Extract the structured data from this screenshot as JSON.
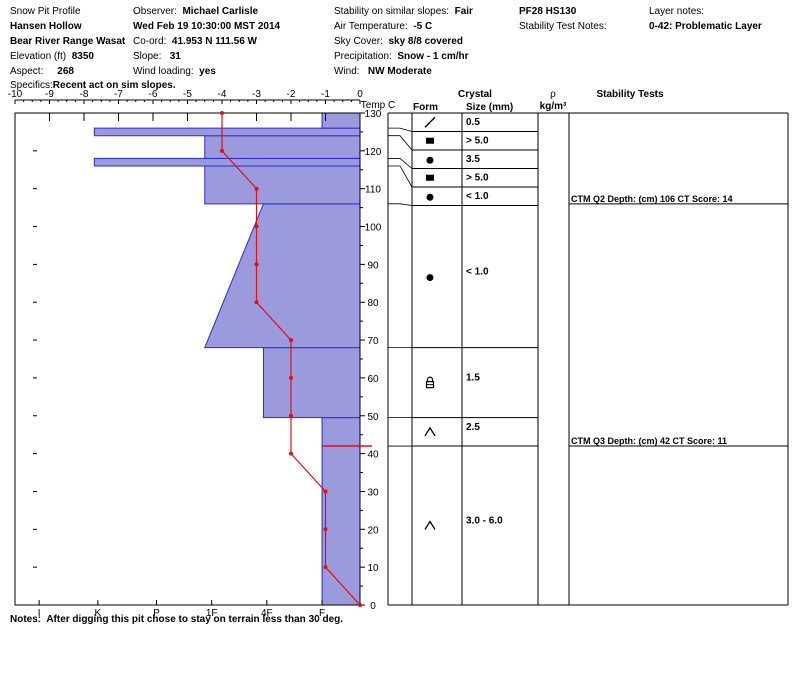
{
  "header": {
    "col1": {
      "title": "Snow Pit Profile",
      "location": "Hansen Hollow",
      "range": "Bear River Range Wasat",
      "elevation_label": "Elevation (ft)",
      "elevation": "8350",
      "aspect_label": "Aspect:",
      "aspect": "268",
      "specifics_label": "Specifics:",
      "specifics": "Recent act on sim slopes."
    },
    "col2": {
      "observer_label": "Observer:",
      "observer": "Michael Carlisle",
      "datetime": "Wed Feb 19 10:30:00 MST 2014",
      "coord_label": "Co-ord:",
      "coord": "41.953 N 111.56 W",
      "slope_label": "Slope:",
      "slope": "31",
      "wind_loading_label": "Wind loading:",
      "wind_loading": "yes"
    },
    "col3": {
      "stability_label": "Stability on similar slopes:",
      "stability": "Fair",
      "air_temp_label": "Air Temperature:",
      "air_temp": "-5 C",
      "sky_label": "Sky Cover:",
      "sky": "sky 8/8 covered",
      "precip_label": "Precipitation:",
      "precip": "Snow - 1 cm/hr",
      "wind_label": "Wind:",
      "wind": "NW Moderate"
    },
    "col4": {
      "pf_hs": "PF28 HS130",
      "stability_notes_label": "Stability Test Notes:"
    },
    "col5": {
      "layer_notes_label": "Layer notes:",
      "layer_notes": "0-42: Problematic Layer"
    }
  },
  "notes_label": "Notes:",
  "notes": "After digging this pit chose to stay on terrain less than 30 deg.",
  "column_headers": {
    "temp": "Temp C",
    "crystal": "Crystal",
    "form": "Form",
    "size": "Size (mm)",
    "rho": "ρ",
    "rho_unit": "kg/m³",
    "stability_tests": "Stability Tests"
  },
  "colors": {
    "hardness_fill": "#9a9add",
    "hardness_stroke": "#2a2ad8",
    "temp_line": "#e01010",
    "test_marker": "#e01010"
  },
  "chart_data": {
    "type": "snow-profile",
    "temperature_axis": {
      "ticks": [
        -10,
        -9,
        -8,
        -7,
        -6,
        -5,
        -4,
        -3,
        -2,
        -1,
        0
      ],
      "range": [
        -10,
        0
      ]
    },
    "depth_axis": {
      "ticks": [
        0,
        10,
        20,
        30,
        40,
        50,
        60,
        70,
        80,
        90,
        100,
        110,
        120,
        130
      ],
      "range": [
        0,
        130
      ]
    },
    "hardness_axis": {
      "labels": [
        "I",
        "K",
        "P",
        "1F",
        "4F",
        "F"
      ],
      "label_temps": [
        -9.3,
        -7.6,
        -5.9,
        -4.3,
        -2.7,
        -1.1
      ]
    },
    "hardness_profile": [
      {
        "bottom": 0,
        "top": 42,
        "left_temp": -1.1
      },
      {
        "bottom": 42,
        "top": 49.5,
        "left_temp": -1.1
      },
      {
        "bottom": 49.5,
        "top": 68,
        "left_temp": -2.8
      },
      {
        "bottom": 68,
        "top": 106,
        "left_temp_bottom": -4.5,
        "left_temp_top": -2.8
      },
      {
        "bottom": 106,
        "top": 116,
        "left_temp": -4.5
      },
      {
        "bottom": 116,
        "top": 118,
        "left_temp": -7.7
      },
      {
        "bottom": 118,
        "top": 124,
        "left_temp": -4.5
      },
      {
        "bottom": 124,
        "top": 126,
        "left_temp": -7.7
      },
      {
        "bottom": 126,
        "top": 130,
        "left_temp": -1.1
      }
    ],
    "temperature_profile": [
      {
        "depth": 0,
        "temp": 0
      },
      {
        "depth": 10,
        "temp": -1
      },
      {
        "depth": 20,
        "temp": -1
      },
      {
        "depth": 30,
        "temp": -1
      },
      {
        "depth": 40,
        "temp": -2
      },
      {
        "depth": 50,
        "temp": -2
      },
      {
        "depth": 60,
        "temp": -2
      },
      {
        "depth": 70,
        "temp": -2
      },
      {
        "depth": 80,
        "temp": -3
      },
      {
        "depth": 90,
        "temp": -3
      },
      {
        "depth": 100,
        "temp": -3
      },
      {
        "depth": 110,
        "temp": -3
      },
      {
        "depth": 120,
        "temp": -4
      },
      {
        "depth": 130,
        "temp": -4
      }
    ],
    "layer_boundaries": [
      0,
      42,
      49.5,
      68,
      106,
      116,
      118,
      124,
      126,
      130
    ],
    "stability_marker_depth": 42,
    "layers": [
      {
        "bottom": 126,
        "top": 130,
        "form": "slash",
        "size": "0.5"
      },
      {
        "bottom": 124,
        "top": 126,
        "form": "square",
        "size": "> 5.0"
      },
      {
        "bottom": 118,
        "top": 124,
        "form": "dot",
        "size": "3.5"
      },
      {
        "bottom": 116,
        "top": 118,
        "form": "square",
        "size": "> 5.0"
      },
      {
        "bottom": 106,
        "top": 116,
        "form": "dot",
        "size": "< 1.0"
      },
      {
        "bottom": 68,
        "top": 106,
        "form": "dot",
        "size": "< 1.0"
      },
      {
        "bottom": 49.5,
        "top": 68,
        "form": "lock",
        "size": "1.5"
      },
      {
        "bottom": 42,
        "top": 49.5,
        "form": "caret",
        "size": "2.5"
      },
      {
        "bottom": 0,
        "top": 42,
        "form": "caret",
        "size": "3.0 - 6.0"
      }
    ],
    "stability_tests": [
      {
        "depth": 106,
        "text": "CTM Q2 Depth: (cm) 106 CT Score: 14"
      },
      {
        "depth": 42,
        "text": "CTM Q3 Depth: (cm) 42 CT Score: 11"
      }
    ]
  }
}
